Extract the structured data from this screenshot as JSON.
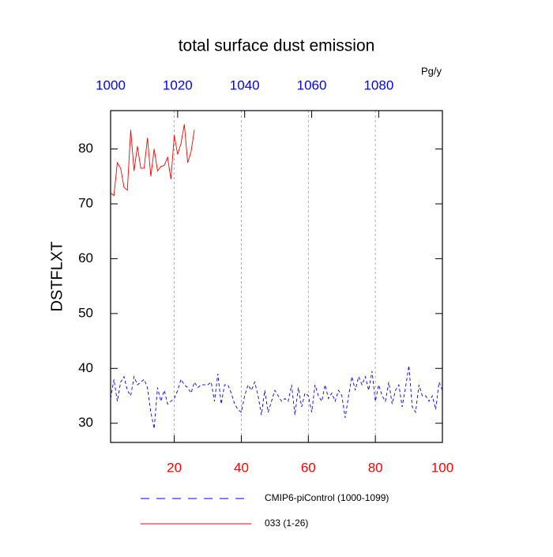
{
  "chart_data": {
    "type": "line",
    "title": "total surface dust emission",
    "units": "Pg/y",
    "ylabel": "DSTFLXT",
    "xlim": [
      1,
      100
    ],
    "xticks": [
      20,
      40,
      60,
      80,
      100
    ],
    "xtick_color": "#ff0000",
    "x2lim": [
      1000,
      1099
    ],
    "x2ticks": [
      1000,
      1020,
      1040,
      1060,
      1080
    ],
    "x2tick_color": "#0000ff",
    "ylim": [
      26.5,
      87
    ],
    "yticks": [
      30,
      40,
      50,
      60,
      70,
      80
    ],
    "grid": true,
    "series": [
      {
        "name": "CMIP6-piControl (1000-1099)",
        "color": "#0000ff",
        "dash": true,
        "x": [
          1,
          2,
          3,
          4,
          5,
          6,
          7,
          8,
          9,
          10,
          11,
          12,
          13,
          14,
          15,
          16,
          17,
          18,
          19,
          20,
          21,
          22,
          23,
          24,
          25,
          26,
          27,
          28,
          29,
          30,
          31,
          32,
          33,
          34,
          35,
          36,
          37,
          38,
          39,
          40,
          41,
          42,
          43,
          44,
          45,
          46,
          47,
          48,
          49,
          50,
          51,
          52,
          53,
          54,
          55,
          56,
          57,
          58,
          59,
          60,
          61,
          62,
          63,
          64,
          65,
          66,
          67,
          68,
          69,
          70,
          71,
          72,
          73,
          74,
          75,
          76,
          77,
          78,
          79,
          80,
          81,
          82,
          83,
          84,
          85,
          86,
          87,
          88,
          89,
          90,
          91,
          92,
          93,
          94,
          95,
          96,
          97,
          98,
          99,
          100
        ],
        "values": [
          34.5,
          38,
          34,
          37.5,
          38.5,
          36,
          35,
          38.5,
          37,
          37.5,
          38,
          36.5,
          32,
          29,
          36.5,
          34,
          36,
          33.5,
          34,
          34.5,
          36,
          38,
          37,
          36.5,
          35.5,
          37.5,
          36.5,
          37,
          37,
          37,
          37.5,
          34,
          39,
          33.5,
          37,
          37,
          35.5,
          33.5,
          32.5,
          32,
          35,
          37,
          36,
          37.5,
          35,
          31.5,
          36,
          32,
          34,
          36,
          35,
          34,
          34.5,
          34,
          37,
          31.5,
          36.5,
          33,
          35.5,
          35,
          32,
          37,
          35,
          34,
          37,
          34.5,
          35.5,
          34,
          36,
          35,
          31,
          35,
          38.5,
          36,
          38.5,
          37,
          38.5,
          36,
          39.5,
          34,
          37,
          35,
          34,
          37.5,
          33.5,
          36,
          37,
          33,
          36.5,
          40.5,
          33,
          32,
          37,
          35,
          35,
          34,
          35,
          32.5,
          37.5,
          36
        ]
      },
      {
        "name": "033 (1-26)",
        "color": "#ff0000",
        "dash": false,
        "x": [
          1,
          2,
          3,
          4,
          5,
          6,
          7,
          8,
          9,
          10,
          11,
          12,
          13,
          14,
          15,
          16,
          17,
          18,
          19,
          20,
          21,
          22,
          23,
          24,
          25,
          26
        ],
        "values": [
          72,
          71.5,
          77.5,
          76.5,
          73,
          72.5,
          83.5,
          76,
          80.5,
          76.5,
          76.5,
          82,
          75,
          80,
          76,
          76.8,
          77,
          78.5,
          74.5,
          82.5,
          79,
          81,
          84.5,
          77.5,
          79.5,
          83.5
        ]
      }
    ]
  }
}
